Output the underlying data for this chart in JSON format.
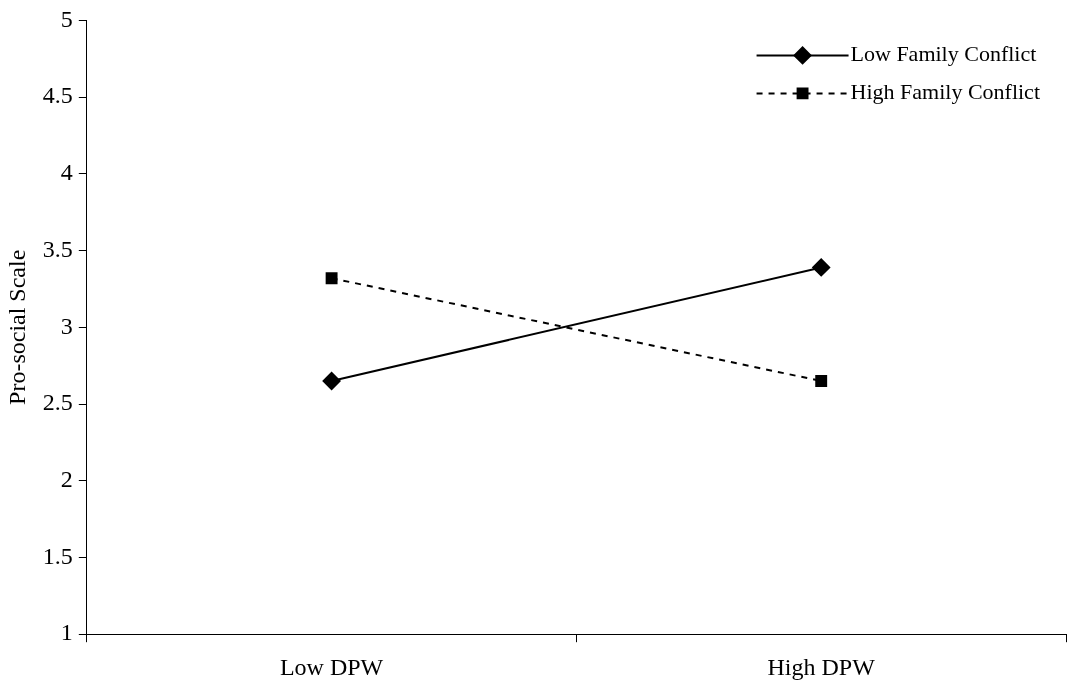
{
  "chart_data": {
    "type": "line",
    "ylabel": "Pro-social Scale",
    "categories": [
      "Low DPW",
      "High DPW"
    ],
    "series": [
      {
        "name": "Low Family Conflict",
        "color": "#000000",
        "values": [
          2.65,
          3.39
        ],
        "marker": "diamond",
        "line_style": "solid"
      },
      {
        "name": "High Family Conflict",
        "color": "#000000",
        "values": [
          3.32,
          2.65
        ],
        "marker": "square",
        "line_style": "dashed"
      }
    ],
    "ylim": [
      1,
      5
    ],
    "yticks": [
      1,
      1.5,
      2,
      2.5,
      3,
      3.5,
      4,
      4.5,
      5
    ],
    "grid": false,
    "legend": "top right"
  }
}
